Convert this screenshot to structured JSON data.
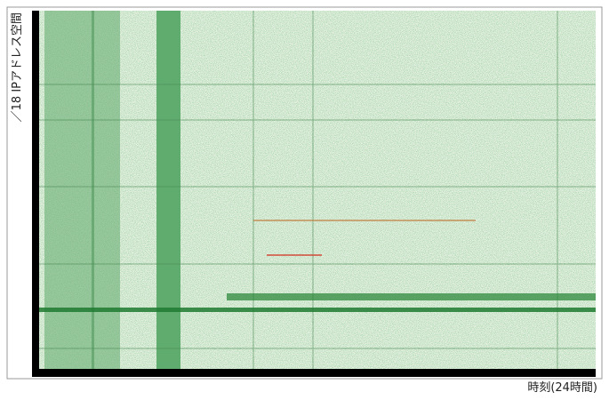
{
  "axes": {
    "y_label": "／18 IPアドレス空間",
    "x_label": "時刻(24時間)"
  }
}
